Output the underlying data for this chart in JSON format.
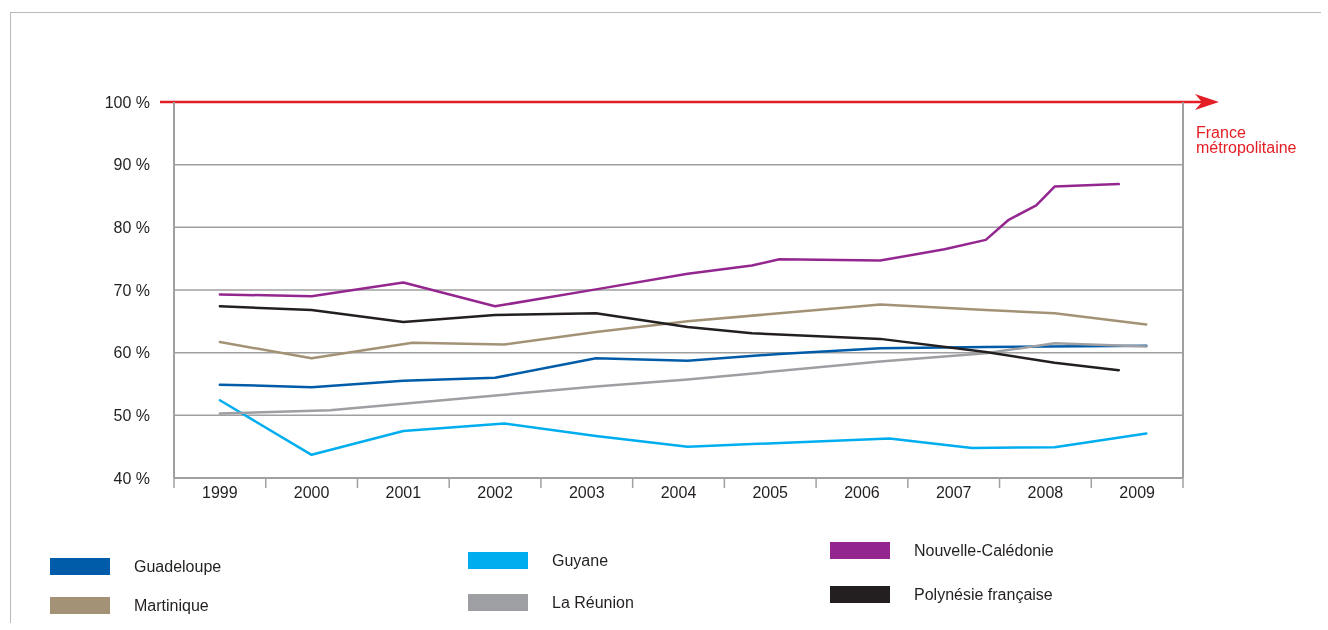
{
  "chart_data": {
    "type": "line",
    "xlim": [
      1998.5,
      2009.5
    ],
    "xticks": [
      {
        "value": 1998.5,
        "label": null
      },
      1999,
      {
        "value": 1999.5,
        "label": null
      },
      2000,
      {
        "value": 2000.5,
        "label": null
      },
      2001,
      {
        "value": 2001.5,
        "label": null
      },
      2002,
      {
        "value": 2002.5,
        "label": null
      },
      2003,
      {
        "value": 2003.5,
        "label": null
      },
      2004,
      {
        "value": 2004.5,
        "label": null
      },
      2005,
      {
        "value": 2005.5,
        "label": null
      },
      2006,
      {
        "value": 2006.5,
        "label": null
      },
      2007,
      {
        "value": 2007.5,
        "label": null
      },
      2008,
      {
        "value": 2008.5,
        "label": null
      },
      2009,
      {
        "value": 2009.5,
        "label": null
      }
    ],
    "ylim": [
      40,
      100
    ],
    "yticks": [
      {
        "value": 40,
        "label": "40 %"
      },
      {
        "value": 50,
        "label": "50 %"
      },
      {
        "value": 60,
        "label": "60 %"
      },
      {
        "value": 70,
        "label": "70 %"
      },
      {
        "value": 80,
        "label": "80 %"
      },
      {
        "value": 90,
        "label": "90 %"
      },
      {
        "value": 100,
        "label": "100 %"
      }
    ],
    "grid": "y",
    "legend": "bottom",
    "ref_lines": [
      {
        "axis": "y",
        "value": 100,
        "label": "France métropolitaine",
        "color": "#e31e24"
      }
    ],
    "series": [
      {
        "name": "Guadeloupe",
        "color": "#005ca9",
        "x": [
          1999,
          2000,
          2001,
          2002,
          2003.1,
          2004.1,
          2005.1,
          2006.2,
          2007.35,
          2009.1
        ],
        "values": [
          54.9,
          54.5,
          55.5,
          56.0,
          59.1,
          58.7,
          59.8,
          60.7,
          60.9,
          61.1
        ]
      },
      {
        "name": "Martinique",
        "color": "#a39275",
        "x": [
          1999,
          2000,
          2001.1,
          2002.1,
          2003.1,
          2004.1,
          2006.2,
          2007.35,
          2008.1,
          2009.1
        ],
        "values": [
          61.7,
          59.1,
          61.6,
          61.3,
          63.3,
          65.0,
          67.7,
          66.8,
          66.3,
          64.5
        ]
      },
      {
        "name": "Guyane",
        "color": "#00aeef",
        "x": [
          1999,
          2000,
          2001,
          2002.1,
          2003.1,
          2004.1,
          2006.3,
          2007.2,
          2008.1,
          2009.1
        ],
        "values": [
          52.4,
          43.7,
          47.5,
          48.7,
          46.7,
          45.0,
          46.3,
          44.8,
          44.9,
          47.1
        ]
      },
      {
        "name": "La Réunion",
        "color": "#9d9fa2",
        "x": [
          1999,
          2000.2,
          2002.1,
          2003.1,
          2004.1,
          2006.2,
          2007.35,
          2008.1,
          2009.1
        ],
        "values": [
          50.3,
          50.8,
          53.3,
          54.6,
          55.7,
          58.6,
          59.9,
          61.5,
          61.0
        ]
      },
      {
        "name": "Nouvelle-Calédonie",
        "color": "#93278f",
        "x": [
          1999,
          2000,
          2001,
          2002,
          2003.1,
          2004.1,
          2004.8,
          2005.1,
          2006.2,
          2006.9,
          2007.35,
          2007.6,
          2007.9,
          2008.1,
          2008.8
        ],
        "values": [
          69.3,
          69.0,
          71.2,
          67.4,
          70.1,
          72.6,
          73.9,
          74.9,
          74.7,
          76.5,
          78.0,
          81.2,
          83.5,
          86.5,
          86.9
        ]
      },
      {
        "name": "Polynésie française",
        "color": "#231f20",
        "x": [
          1999,
          2000,
          2001,
          2002,
          2003.1,
          2004.1,
          2004.8,
          2006.2,
          2007.35,
          2008.1,
          2008.8
        ],
        "values": [
          67.4,
          66.8,
          64.9,
          66.0,
          66.3,
          64.1,
          63.1,
          62.2,
          60.1,
          58.4,
          57.2
        ]
      }
    ]
  }
}
